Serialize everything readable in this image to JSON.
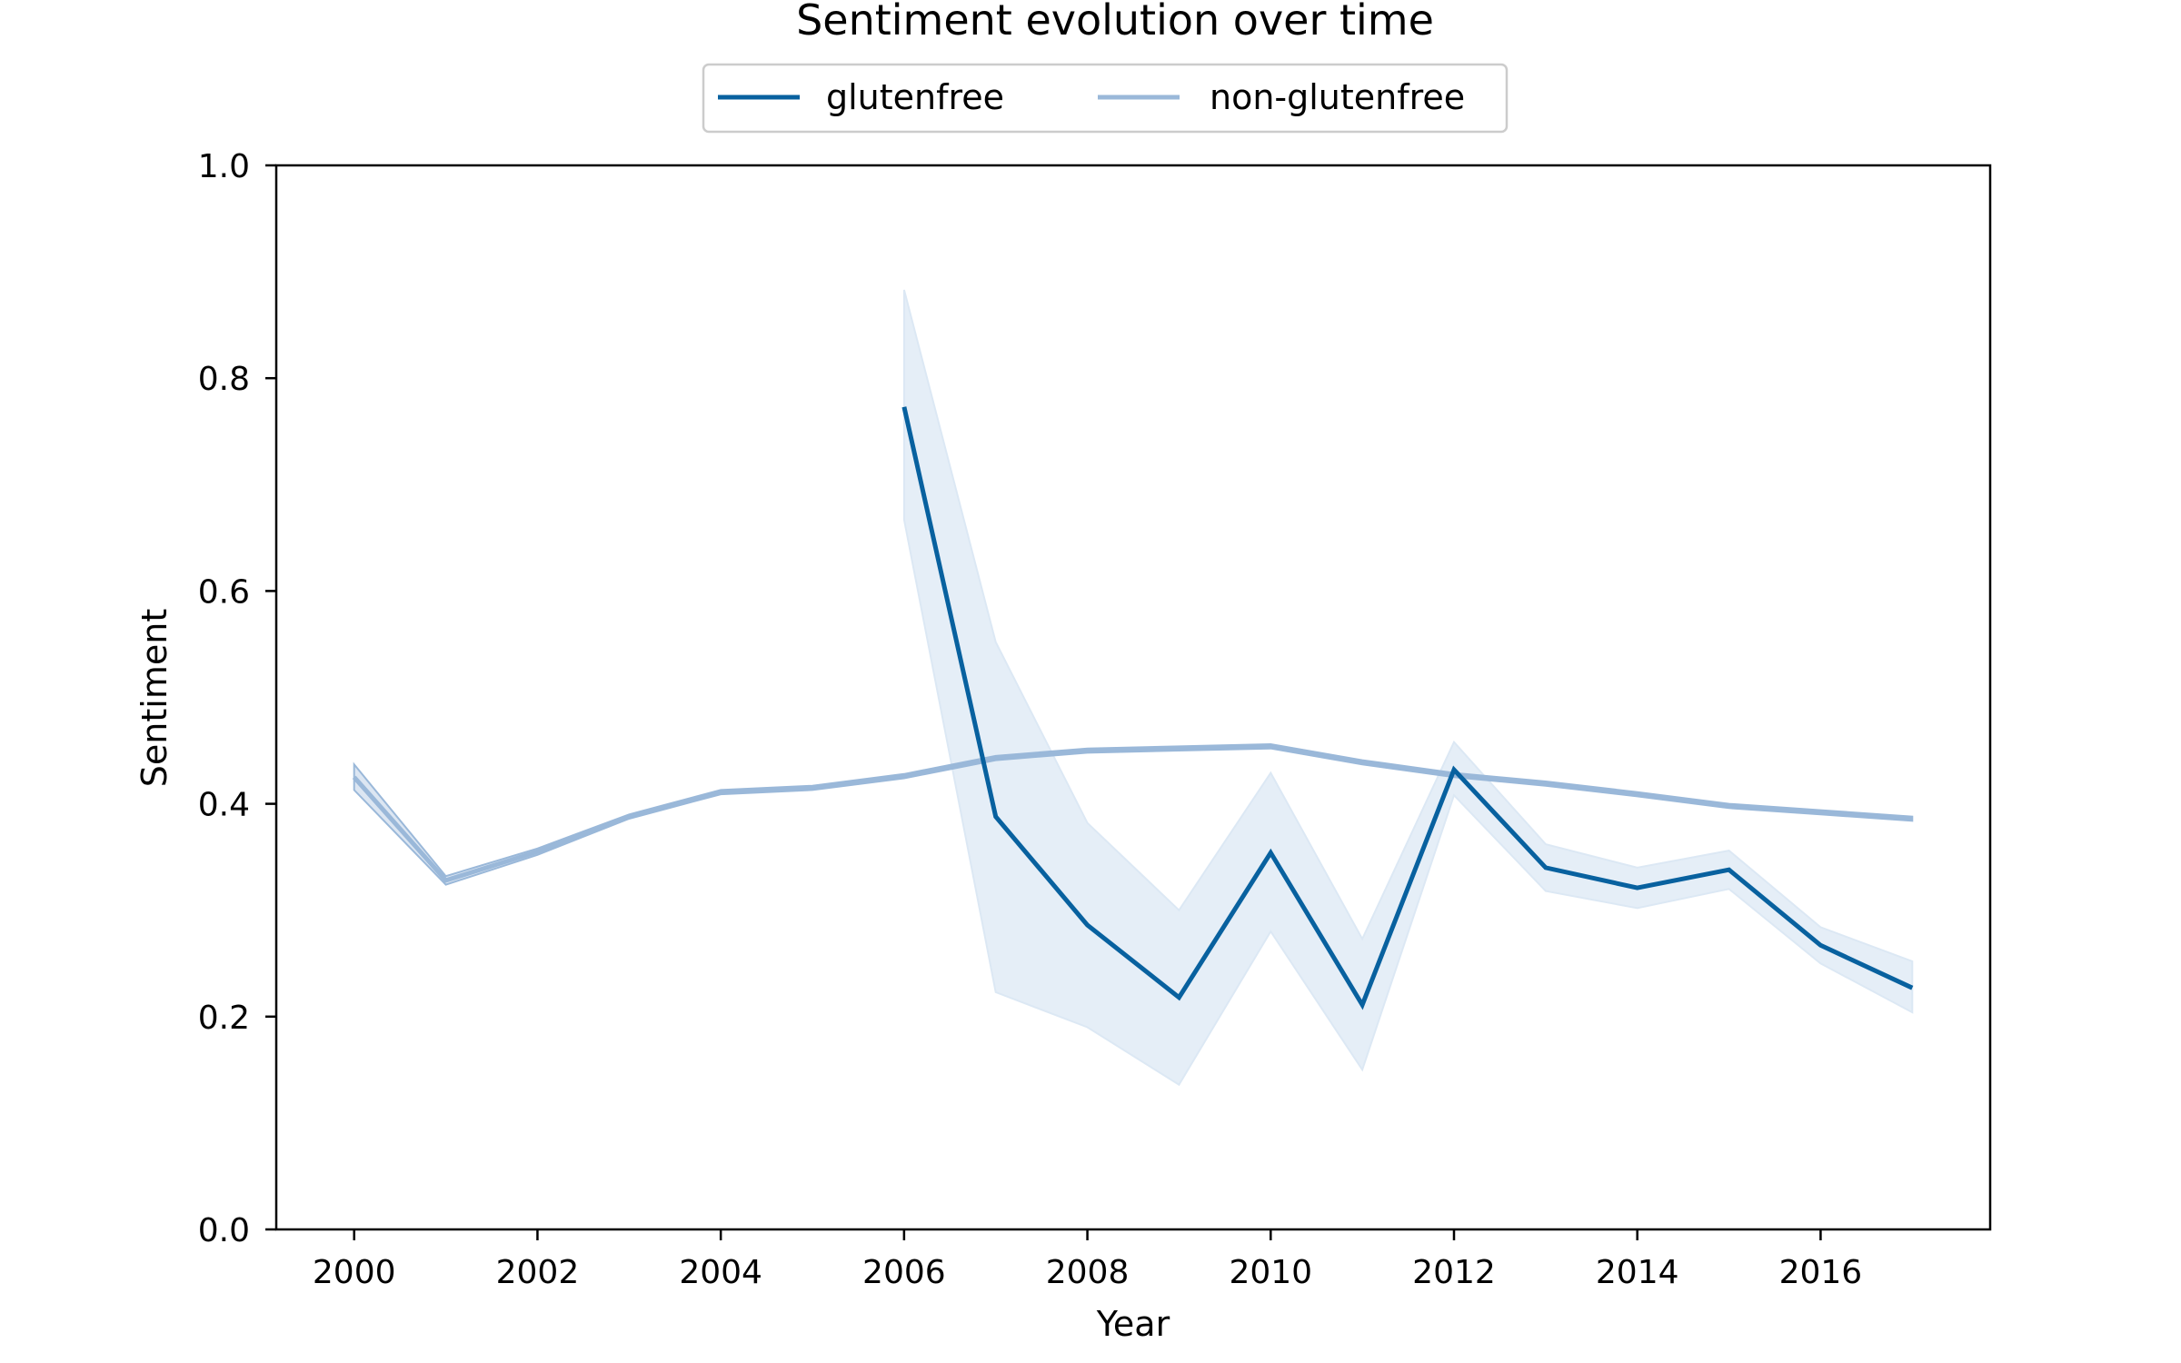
{
  "chart_data": {
    "type": "line",
    "title": "Sentiment evolution over time",
    "xlabel": "Year",
    "ylabel": "Sentiment",
    "xlim": [
      1999.15,
      2017.85
    ],
    "ylim": [
      0.0,
      1.0
    ],
    "xticks": [
      2000,
      2002,
      2004,
      2006,
      2008,
      2010,
      2012,
      2014,
      2016
    ],
    "xtick_labels": [
      "2000",
      "2002",
      "2004",
      "2006",
      "2008",
      "2010",
      "2012",
      "2014",
      "2016"
    ],
    "yticks": [
      0.0,
      0.2,
      0.4,
      0.6,
      0.8,
      1.0
    ],
    "ytick_labels": [
      "0.0",
      "0.2",
      "0.4",
      "0.6",
      "0.8",
      "1.0"
    ],
    "grid": false,
    "legend_position": "top-center",
    "series": [
      {
        "name": "glutenfree",
        "color": "#08619f",
        "x": [
          2006,
          2007,
          2008,
          2009,
          2010,
          2011,
          2012,
          2013,
          2014,
          2015,
          2016,
          2017
        ],
        "y": [
          0.773,
          0.388,
          0.286,
          0.218,
          0.354,
          0.211,
          0.432,
          0.34,
          0.321,
          0.338,
          0.267,
          0.227
        ],
        "ci_lower": [
          0.667,
          0.223,
          0.19,
          0.136,
          0.28,
          0.15,
          0.408,
          0.318,
          0.302,
          0.32,
          0.25,
          0.204
        ],
        "ci_upper": [
          0.883,
          0.552,
          0.382,
          0.3,
          0.429,
          0.273,
          0.458,
          0.362,
          0.34,
          0.356,
          0.284,
          0.252
        ],
        "ci_color": "#dce8f4"
      },
      {
        "name": "non-glutenfree",
        "color": "#9ab8d9",
        "x": [
          2000,
          2001,
          2002,
          2003,
          2004,
          2005,
          2006,
          2007,
          2008,
          2009,
          2010,
          2011,
          2012,
          2013,
          2014,
          2015,
          2016,
          2017
        ],
        "y": [
          0.425,
          0.328,
          0.355,
          0.388,
          0.411,
          0.415,
          0.426,
          0.443,
          0.45,
          0.452,
          0.454,
          0.439,
          0.427,
          0.419,
          0.409,
          0.398,
          0.392,
          0.386
        ],
        "ci_lower": [
          0.413,
          0.324,
          0.352,
          0.386,
          0.409,
          0.413,
          0.424,
          0.441,
          0.448,
          0.45,
          0.452,
          0.437,
          0.425,
          0.417,
          0.407,
          0.396,
          0.39,
          0.384
        ],
        "ci_upper": [
          0.437,
          0.332,
          0.358,
          0.39,
          0.413,
          0.417,
          0.428,
          0.445,
          0.452,
          0.454,
          0.456,
          0.441,
          0.429,
          0.421,
          0.411,
          0.4,
          0.394,
          0.388
        ]
      }
    ]
  }
}
